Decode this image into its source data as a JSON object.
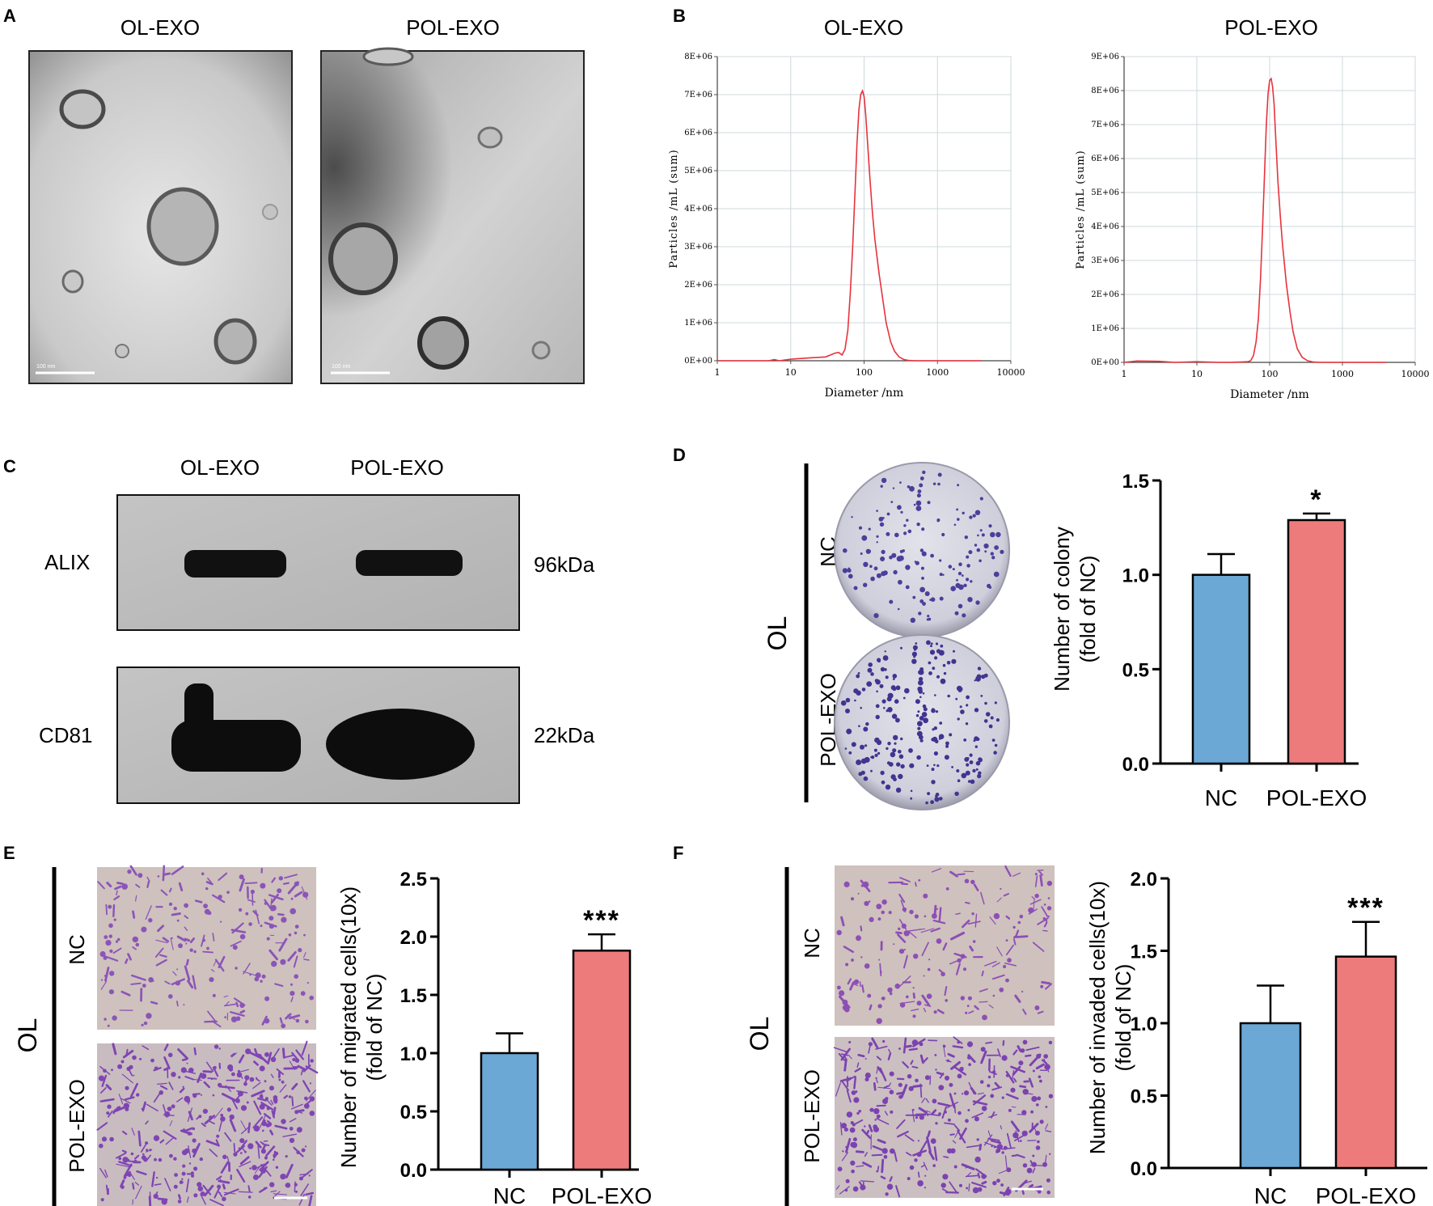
{
  "panels": {
    "A": {
      "letter": "A",
      "images": [
        {
          "label": "OL-EXO",
          "scale_text": "100 nm"
        },
        {
          "label": "POL-EXO",
          "scale_text": "100 nm"
        }
      ]
    },
    "C": {
      "letter": "C",
      "lanes": [
        "OL-EXO",
        "POL-EXO"
      ],
      "bands": [
        {
          "protein": "ALIX",
          "size": "96kDa"
        },
        {
          "protein": "CD81",
          "size": "22kDa"
        }
      ]
    },
    "D": {
      "letter": "D",
      "group": "OL",
      "rows": [
        "NC",
        "POL-EXO"
      ]
    },
    "E": {
      "letter": "E",
      "group": "OL",
      "rows": [
        "NC",
        "POL-EXO"
      ]
    },
    "F": {
      "letter": "F",
      "group": "OL",
      "rows": [
        "NC",
        "POL-EXO"
      ]
    }
  },
  "chart_data": [
    {
      "id": "B-left",
      "panel": "B",
      "type": "line",
      "title": "OL-EXO",
      "xlabel": "Diameter /nm",
      "ylabel": "Particles /mL (sum)",
      "x_scale": "log",
      "xlim": [
        1,
        10000
      ],
      "ylim": [
        0,
        8000000
      ],
      "x_ticks": [
        "1",
        "10",
        "100",
        "1000",
        "10000"
      ],
      "y_ticks": [
        "0E+00",
        "1E+06",
        "2E+06",
        "3E+06",
        "4E+06",
        "5E+06",
        "6E+06",
        "7E+06",
        "8E+06"
      ],
      "grid": true,
      "series": [
        {
          "color": "#e8323c",
          "x": [
            1,
            5,
            6,
            7,
            10,
            20,
            30,
            40,
            45,
            50,
            55,
            60,
            65,
            70,
            75,
            80,
            85,
            90,
            95,
            100,
            105,
            110,
            120,
            130,
            140,
            160,
            180,
            200,
            230,
            260,
            300,
            350,
            400,
            500,
            700,
            1000,
            2000,
            4000
          ],
          "y": [
            0,
            0,
            30000,
            0,
            40000,
            80000,
            100000,
            200000,
            220000,
            150000,
            300000,
            800000,
            1800000,
            3000000,
            4400000,
            5700000,
            6600000,
            7000000,
            7100000,
            6950000,
            6500000,
            5900000,
            4800000,
            3900000,
            3200000,
            2300000,
            1600000,
            1000000,
            500000,
            250000,
            100000,
            30000,
            10000,
            0,
            0,
            0,
            0,
            0
          ]
        }
      ]
    },
    {
      "id": "B-right",
      "panel": "B",
      "type": "line",
      "title": "POL-EXO",
      "xlabel": "Diameter /nm",
      "ylabel": "Particles /mL (sum)",
      "x_scale": "log",
      "xlim": [
        1,
        10000
      ],
      "ylim": [
        0,
        9000000
      ],
      "x_ticks": [
        "1",
        "10",
        "100",
        "1000",
        "10000"
      ],
      "y_ticks": [
        "0E+00",
        "1E+06",
        "2E+06",
        "3E+06",
        "4E+06",
        "5E+06",
        "6E+06",
        "7E+06",
        "8E+06",
        "9E+06"
      ],
      "grid": true,
      "series": [
        {
          "color": "#e8323c",
          "x": [
            1,
            1.5,
            3,
            5,
            10,
            20,
            30,
            40,
            50,
            55,
            60,
            65,
            70,
            75,
            80,
            85,
            90,
            95,
            100,
            105,
            110,
            115,
            120,
            130,
            140,
            150,
            170,
            190,
            210,
            240,
            280,
            330,
            400,
            500,
            1000,
            2000,
            4000
          ],
          "y": [
            0,
            40000,
            30000,
            0,
            20000,
            0,
            0,
            10000,
            20000,
            50000,
            200000,
            600000,
            1300000,
            2500000,
            4000000,
            5500000,
            7000000,
            7900000,
            8300000,
            8350000,
            8100000,
            7600000,
            6800000,
            5300000,
            4300000,
            3500000,
            2300000,
            1500000,
            900000,
            400000,
            150000,
            50000,
            10000,
            0,
            0,
            0,
            0
          ]
        }
      ]
    },
    {
      "id": "D",
      "panel": "D",
      "type": "bar",
      "categories": [
        "NC",
        "POL-EXO"
      ],
      "values": [
        1.0,
        1.29
      ],
      "errors": [
        0.11,
        0.035
      ],
      "colors": [
        "#6ca8d6",
        "#ee7b7b"
      ],
      "significance": [
        "",
        "*"
      ],
      "ylabel": "Number of colony\n(fold of NC)",
      "ylim": [
        0,
        1.5
      ],
      "y_ticks": [
        "0.0",
        "0.5",
        "1.0",
        "1.5"
      ]
    },
    {
      "id": "E",
      "panel": "E",
      "type": "bar",
      "categories": [
        "NC",
        "POL-EXO"
      ],
      "values": [
        1.0,
        1.88
      ],
      "errors": [
        0.17,
        0.14
      ],
      "colors": [
        "#6ca8d6",
        "#ee7b7b"
      ],
      "significance": [
        "",
        "***"
      ],
      "ylabel": "Number of migrated cells(10x)\n(fold of NC)",
      "ylim": [
        0,
        2.5
      ],
      "y_ticks": [
        "0.0",
        "0.5",
        "1.0",
        "1.5",
        "2.0",
        "2.5"
      ]
    },
    {
      "id": "F",
      "panel": "F",
      "type": "bar",
      "categories": [
        "NC",
        "POL-EXO"
      ],
      "values": [
        1.0,
        1.46
      ],
      "errors": [
        0.26,
        0.24
      ],
      "colors": [
        "#6ca8d6",
        "#ee7b7b"
      ],
      "significance": [
        "",
        "***"
      ],
      "ylabel": "Number of invaded cells(10x)\n(fold of NC)",
      "ylim": [
        0,
        2.0
      ],
      "y_ticks": [
        "0.0",
        "0.5",
        "1.0",
        "1.5",
        "2.0"
      ]
    }
  ]
}
